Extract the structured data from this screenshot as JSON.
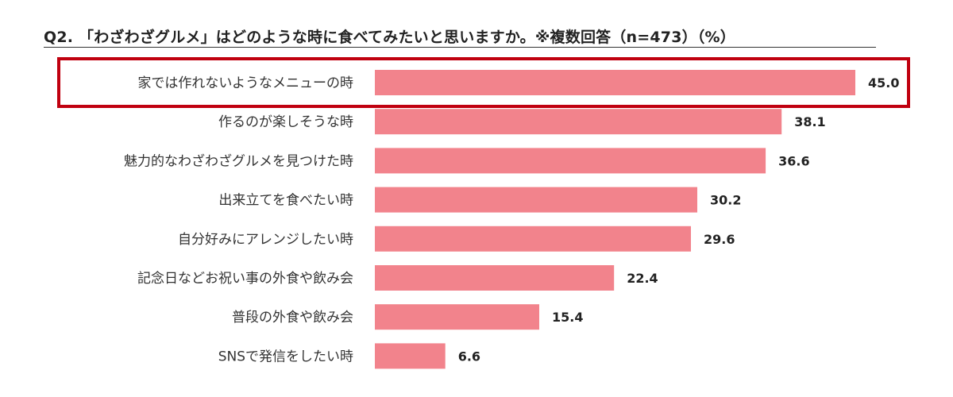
{
  "chart_data": {
    "type": "bar",
    "orientation": "horizontal",
    "title": "Q2. 「わざわざグルメ」はどのような時に食べてみたいと思いますか。※複数回答（n=473）（%）",
    "categories": [
      "家では作れないようなメニューの時",
      "作るのが楽しそうな時",
      "魅力的なわざわざグルメを見つけた時",
      "出来立てを食べたい時",
      "自分好みにアレンジしたい時",
      "記念日などお祝い事の外食や飲み会",
      "普段の外食や飲み会",
      "SNSで発信をしたい時"
    ],
    "values": [
      45.0,
      38.1,
      36.6,
      30.2,
      29.6,
      22.4,
      15.4,
      6.6
    ],
    "value_labels": [
      "45.0",
      "38.1",
      "36.6",
      "30.2",
      "29.6",
      "22.4",
      "15.4",
      "6.6"
    ],
    "xlim": [
      0,
      45
    ],
    "xlabel": "",
    "ylabel": "",
    "grid": false,
    "highlighted_index": 0,
    "colors": {
      "bar": "#f2838c",
      "highlight_box": "#c0000f",
      "value_text": "#222222",
      "category_text": "#333333"
    }
  }
}
